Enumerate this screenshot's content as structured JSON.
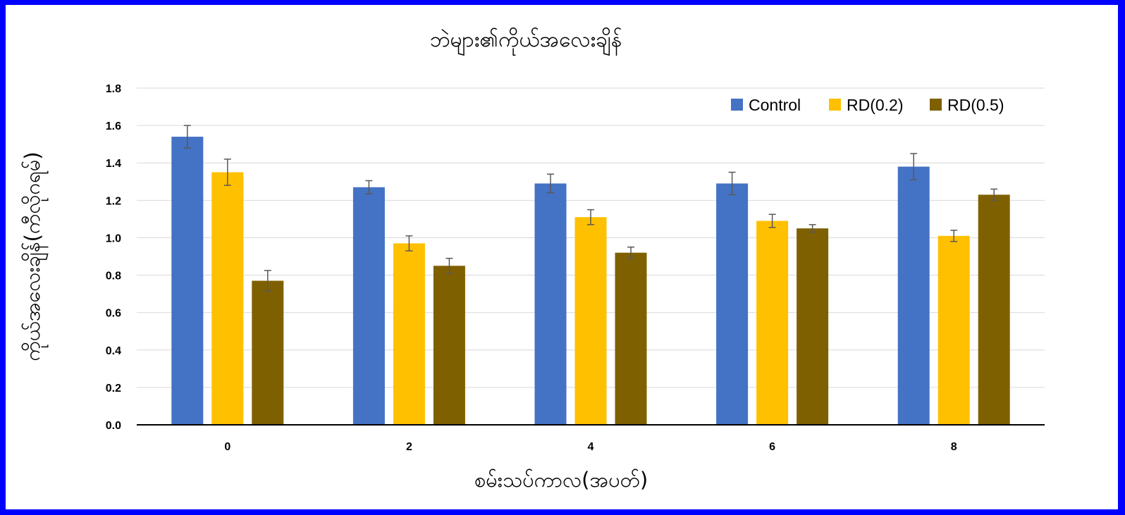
{
  "chart_data": {
    "type": "bar",
    "title": "ဘဲများ၏ကိုယ်အလေးချိန်",
    "xlabel": "စမ်းသပ်ကာလ(အပတ်)",
    "ylabel": "ကိုယ်အလေးချိန်(ကီလိုဂရမ်)",
    "categories": [
      "0",
      "2",
      "4",
      "6",
      "8"
    ],
    "ylim": [
      0,
      1.8
    ],
    "yticks": [
      "0.0",
      "0.2",
      "0.4",
      "0.6",
      "0.8",
      "1.0",
      "1.2",
      "1.4",
      "1.6",
      "1.8"
    ],
    "grid": true,
    "legend_position": "top-right",
    "series": [
      {
        "name": "Control",
        "color": "#4472C4",
        "values": [
          1.54,
          1.27,
          1.29,
          1.29,
          1.38
        ],
        "errors": [
          0.06,
          0.035,
          0.05,
          0.06,
          0.07
        ]
      },
      {
        "name": "RD(0.2)",
        "color": "#FFC000",
        "values": [
          1.35,
          0.97,
          1.11,
          1.09,
          1.01
        ],
        "errors": [
          0.07,
          0.04,
          0.04,
          0.035,
          0.03
        ]
      },
      {
        "name": "RD(0.5)",
        "color": "#7F6000",
        "values": [
          0.77,
          0.85,
          0.92,
          1.05,
          1.23
        ],
        "errors": [
          0.055,
          0.04,
          0.03,
          0.02,
          0.03
        ]
      }
    ]
  }
}
